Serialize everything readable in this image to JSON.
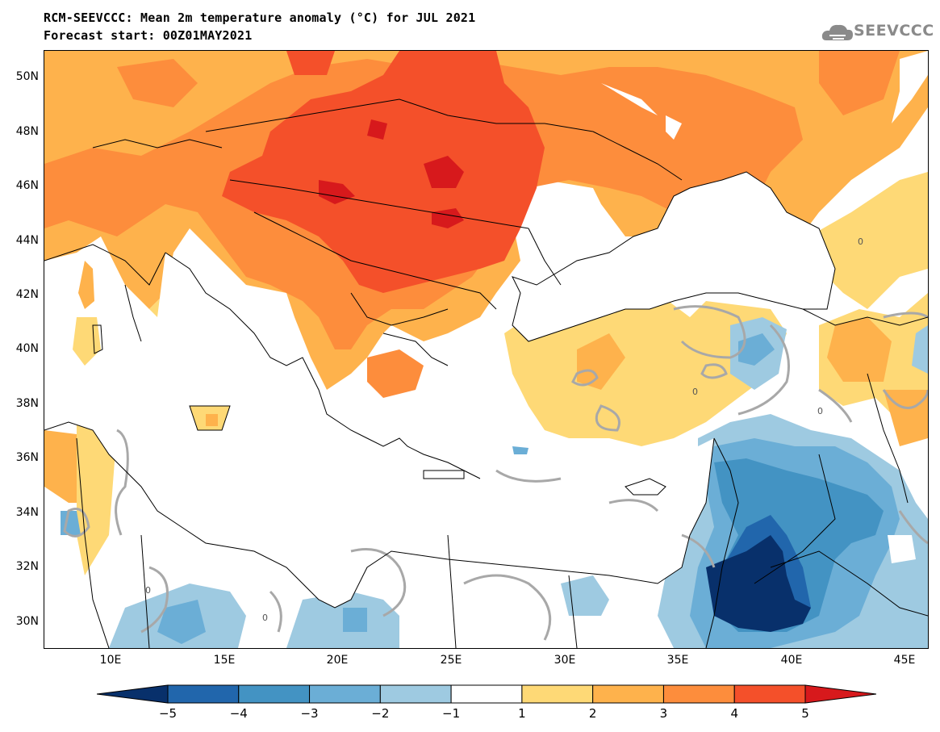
{
  "title_line1": "RCM-SEEVCCC: Mean 2m temperature anomaly (°C) for JUL 2021",
  "title_line2": "Forecast start: 00Z01MAY2021",
  "logo_text": "SEEVCCC",
  "contour_label": "0",
  "y_labels": [
    "50N",
    "48N",
    "46N",
    "44N",
    "42N",
    "40N",
    "38N",
    "36N",
    "34N",
    "32N",
    "30N"
  ],
  "x_labels": [
    "10E",
    "15E",
    "20E",
    "25E",
    "30E",
    "35E",
    "40E",
    "45E"
  ],
  "colorbar": {
    "ticks": [
      "−5",
      "−4",
      "−3",
      "−2",
      "−1",
      "1",
      "2",
      "3",
      "4",
      "5"
    ],
    "colors": [
      "#08306b",
      "#2166ac",
      "#4393c3",
      "#6baed6",
      "#9ecae1",
      "#ffffff",
      "#fed976",
      "#feb24c",
      "#fd8d3c",
      "#f4502a",
      "#d7191c"
    ]
  },
  "colors": {
    "anom_plus1": "#fed976",
    "anom_plus2": "#feb24c",
    "anom_plus3": "#fd8d3c",
    "anom_plus4": "#f4502a",
    "anom_plus5": "#d7191c",
    "anom_minus1": "#9ecae1",
    "anom_minus2": "#6baed6",
    "anom_minus3": "#4393c3",
    "anom_minus4": "#2166ac",
    "anom_minus5": "#08306b",
    "sea": "#ffffff",
    "contour": "#a8a8a8"
  }
}
